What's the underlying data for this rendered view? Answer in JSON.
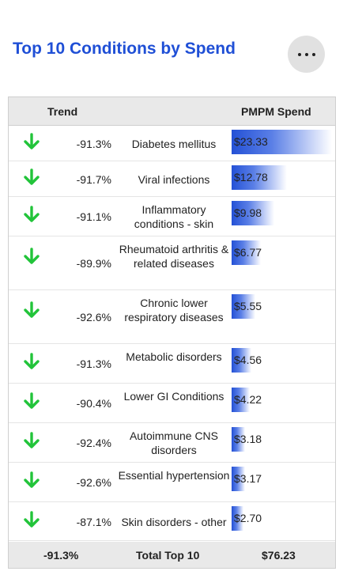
{
  "header": {
    "title": "Top 10 Conditions by Spend",
    "more_icon": "more-horizontal-icon"
  },
  "table": {
    "columns": {
      "trend": "Trend",
      "spend": "PMPM Spend"
    },
    "trend_icon": "arrow-down-icon",
    "colors": {
      "trend_down": "#22c43a",
      "bar": "#2451d6",
      "title": "#1f4fd6"
    },
    "max_spend": 23.33,
    "rows": [
      {
        "trend": "-91.3%",
        "condition": "Diabetes mellitus",
        "spend_label": "$23.33",
        "spend": 23.33
      },
      {
        "trend": "-91.7%",
        "condition": "Viral infections",
        "spend_label": "$12.78",
        "spend": 12.78
      },
      {
        "trend": "-91.1%",
        "condition": "Inflammatory conditions - skin",
        "spend_label": "$9.98",
        "spend": 9.98
      },
      {
        "trend": "-89.9%",
        "condition": "Rheumatoid arthritis & related diseases",
        "spend_label": "$6.77",
        "spend": 6.77
      },
      {
        "trend": "-92.6%",
        "condition": "Chronic lower respiratory diseases",
        "spend_label": "$5.55",
        "spend": 5.55
      },
      {
        "trend": "-91.3%",
        "condition": "Metabolic disorders",
        "spend_label": "$4.56",
        "spend": 4.56
      },
      {
        "trend": "-90.4%",
        "condition": "Lower GI Conditions",
        "spend_label": "$4.22",
        "spend": 4.22
      },
      {
        "trend": "-92.4%",
        "condition": "Autoimmune CNS disorders",
        "spend_label": "$3.18",
        "spend": 3.18
      },
      {
        "trend": "-92.6%",
        "condition": "Essential hypertension",
        "spend_label": "$3.17",
        "spend": 3.17
      },
      {
        "trend": "-87.1%",
        "condition": "Skin disorders - other",
        "spend_label": "$2.70",
        "spend": 2.7
      }
    ],
    "footer": {
      "trend": "-91.3%",
      "label": "Total Top 10",
      "total": "$76.23"
    }
  }
}
